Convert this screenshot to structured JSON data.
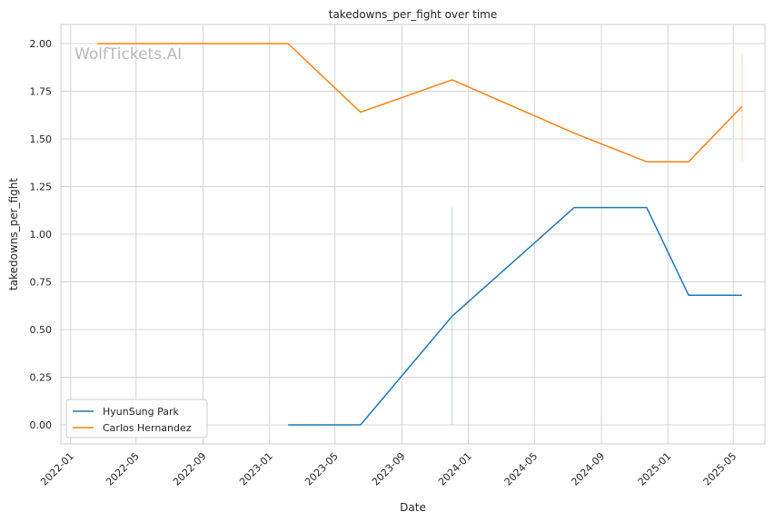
{
  "watermark": "WolfTickets.AI",
  "chart_data": {
    "type": "line",
    "title": "takedowns_per_fight over time",
    "xlabel": "Date",
    "ylabel": "takedowns_per_fight",
    "x_type": "date",
    "xlim": [
      "2021-12-14",
      "2025-06-28"
    ],
    "ylim": [
      -0.1,
      2.1
    ],
    "x_ticks": [
      "2022-01",
      "2022-05",
      "2022-09",
      "2023-01",
      "2023-05",
      "2023-09",
      "2024-01",
      "2024-05",
      "2024-09",
      "2025-01",
      "2025-05"
    ],
    "x_tick_dates": [
      "2022-01-01",
      "2022-05-01",
      "2022-09-01",
      "2023-01-01",
      "2023-05-01",
      "2023-09-01",
      "2024-01-01",
      "2024-05-01",
      "2024-09-01",
      "2025-01-01",
      "2025-05-01"
    ],
    "y_ticks": [
      0.0,
      0.25,
      0.5,
      0.75,
      1.0,
      1.25,
      1.5,
      1.75,
      2.0
    ],
    "y_tick_labels": [
      "0.00",
      "0.25",
      "0.50",
      "0.75",
      "1.00",
      "1.25",
      "1.50",
      "1.75",
      "2.00"
    ],
    "grid": true,
    "legend_position": "lower-left",
    "series": [
      {
        "name": "HyunSung Park",
        "color": "#1f77b4",
        "points": [
          {
            "x": "2023-02-04",
            "y": 0.0
          },
          {
            "x": "2023-06-17",
            "y": 0.0
          },
          {
            "x": "2023-12-02",
            "y": 0.57
          },
          {
            "x": "2024-07-13",
            "y": 1.14
          },
          {
            "x": "2024-11-23",
            "y": 1.14
          },
          {
            "x": "2025-02-08",
            "y": 0.68
          },
          {
            "x": "2025-05-17",
            "y": 0.68
          }
        ],
        "error_bars": [
          {
            "x": "2023-12-02",
            "low": 0.0,
            "high": 1.14
          }
        ]
      },
      {
        "name": "Carlos Hernandez",
        "color": "#ff7f0e",
        "points": [
          {
            "x": "2022-02-19",
            "y": 2.0
          },
          {
            "x": "2023-02-04",
            "y": 2.0
          },
          {
            "x": "2023-06-17",
            "y": 1.64
          },
          {
            "x": "2023-12-02",
            "y": 1.81
          },
          {
            "x": "2024-07-13",
            "y": 1.53
          },
          {
            "x": "2024-11-23",
            "y": 1.38
          },
          {
            "x": "2025-02-08",
            "y": 1.38
          },
          {
            "x": "2025-05-17",
            "y": 1.67
          }
        ],
        "error_bars": [
          {
            "x": "2025-05-17",
            "low": 1.38,
            "high": 1.95
          }
        ]
      }
    ]
  }
}
